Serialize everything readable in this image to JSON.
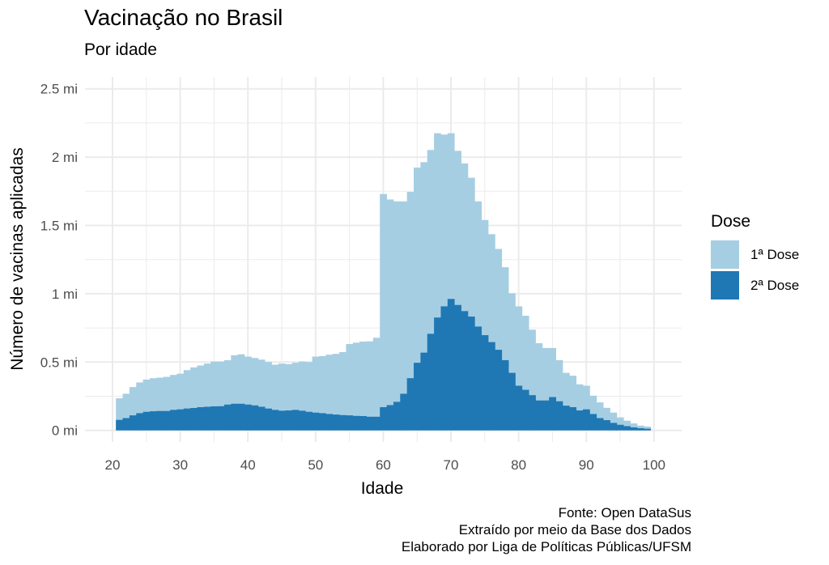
{
  "title": "Vacinação no Brasil",
  "subtitle": "Por idade",
  "caption": [
    "Fonte: Open DataSus",
    "Extraído por meio da Base dos Dados",
    "Elaborado por Liga de Políticas Públicas/UFSM"
  ],
  "legend": {
    "title": "Dose",
    "items": [
      {
        "label": "1ª Dose",
        "color": "#a6cee3"
      },
      {
        "label": "2ª Dose",
        "color": "#1f78b4"
      }
    ]
  },
  "chart_data": {
    "type": "bar",
    "title": "Vacinação no Brasil",
    "subtitle": "Por idade",
    "xlabel": "Idade",
    "ylabel": "Número de vacinas aplicadas",
    "xlim": [
      18,
      102
    ],
    "ylim": [
      0,
      2.6
    ],
    "x_ticks": [
      20,
      30,
      40,
      50,
      60,
      70,
      80,
      90,
      100
    ],
    "x_tick_labels": [
      "20",
      "30",
      "40",
      "50",
      "60",
      "70",
      "80",
      "90",
      "100"
    ],
    "y_ticks": [
      0,
      0.5,
      1,
      1.5,
      2,
      2.5
    ],
    "y_tick_labels": [
      "0 mi",
      "0.5 mi",
      "1 mi",
      "1.5 mi",
      "2 mi",
      "2.5 mi"
    ],
    "y_units": "millions",
    "grid": true,
    "legend_position": "right",
    "categories": [
      21,
      22,
      23,
      24,
      25,
      26,
      27,
      28,
      29,
      30,
      31,
      32,
      33,
      34,
      35,
      36,
      37,
      38,
      39,
      40,
      41,
      42,
      43,
      44,
      45,
      46,
      47,
      48,
      49,
      50,
      51,
      52,
      53,
      54,
      55,
      56,
      57,
      58,
      59,
      60,
      61,
      62,
      63,
      64,
      65,
      66,
      67,
      68,
      69,
      70,
      71,
      72,
      73,
      74,
      75,
      76,
      77,
      78,
      79,
      80,
      81,
      82,
      83,
      84,
      85,
      86,
      87,
      88,
      89,
      90,
      91,
      92,
      93,
      94,
      95,
      96,
      97,
      98,
      99
    ],
    "series": [
      {
        "name": "1ª Dose",
        "color": "#a6cee3",
        "values": [
          0.235,
          0.268,
          0.317,
          0.351,
          0.372,
          0.382,
          0.386,
          0.392,
          0.406,
          0.415,
          0.441,
          0.461,
          0.475,
          0.489,
          0.504,
          0.504,
          0.514,
          0.55,
          0.557,
          0.54,
          0.53,
          0.518,
          0.501,
          0.481,
          0.489,
          0.485,
          0.495,
          0.504,
          0.501,
          0.54,
          0.544,
          0.554,
          0.56,
          0.573,
          0.632,
          0.642,
          0.65,
          0.652,
          0.678,
          1.73,
          1.69,
          1.676,
          1.676,
          1.746,
          1.923,
          1.963,
          2.052,
          2.175,
          2.165,
          2.175,
          2.046,
          1.954,
          1.849,
          1.676,
          1.54,
          1.436,
          1.328,
          1.194,
          1.003,
          0.908,
          0.839,
          0.737,
          0.638,
          0.603,
          0.603,
          0.514,
          0.421,
          0.4,
          0.337,
          0.327,
          0.254,
          0.205,
          0.165,
          0.13,
          0.095,
          0.071,
          0.051,
          0.035,
          0.028
        ]
      },
      {
        "name": "2ª Dose",
        "color": "#1f78b4",
        "values": [
          0.077,
          0.09,
          0.11,
          0.126,
          0.136,
          0.14,
          0.142,
          0.142,
          0.15,
          0.154,
          0.16,
          0.164,
          0.17,
          0.173,
          0.176,
          0.177,
          0.189,
          0.195,
          0.195,
          0.189,
          0.183,
          0.173,
          0.16,
          0.15,
          0.144,
          0.146,
          0.15,
          0.144,
          0.136,
          0.13,
          0.126,
          0.12,
          0.116,
          0.112,
          0.11,
          0.106,
          0.105,
          0.1,
          0.1,
          0.17,
          0.185,
          0.209,
          0.268,
          0.382,
          0.495,
          0.569,
          0.707,
          0.826,
          0.908,
          0.962,
          0.918,
          0.873,
          0.833,
          0.76,
          0.697,
          0.646,
          0.59,
          0.514,
          0.421,
          0.327,
          0.297,
          0.258,
          0.219,
          0.219,
          0.244,
          0.213,
          0.181,
          0.17,
          0.146,
          0.154,
          0.12,
          0.09,
          0.075,
          0.055,
          0.041,
          0.031,
          0.022,
          0.016,
          0.012
        ]
      }
    ]
  }
}
